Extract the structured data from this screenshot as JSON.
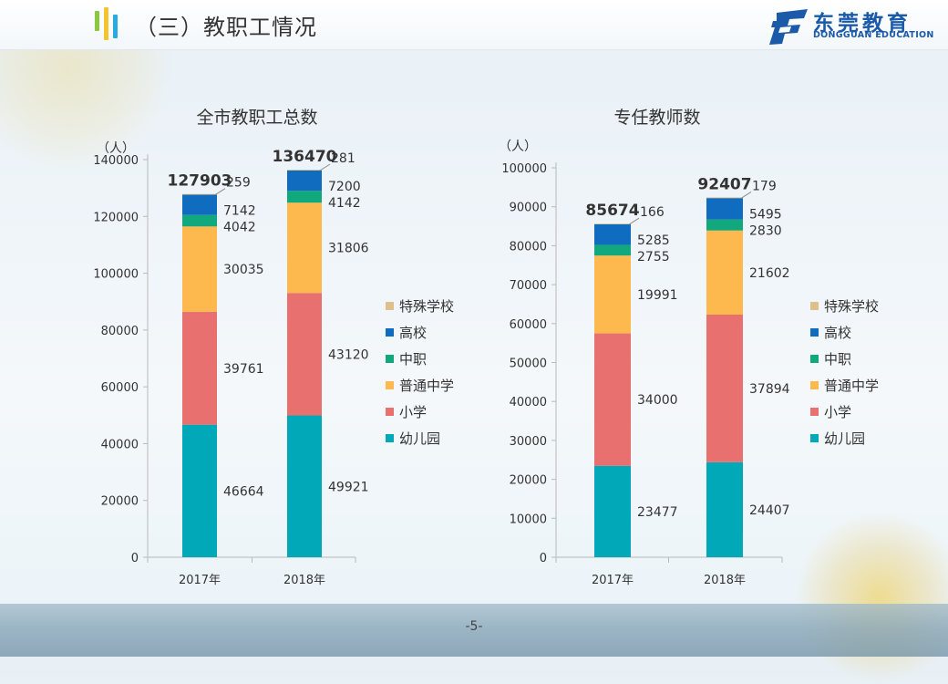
{
  "page": {
    "title": "（三）教职工情况",
    "page_number": "-5-",
    "logo": {
      "cn": "东莞教育",
      "en": "DONGGUAN EDUCATION",
      "color": "#1a5aa8"
    },
    "title_bar_colors": [
      "#8dc63f",
      "#f4c430",
      "#29abe2"
    ]
  },
  "chart_data": [
    {
      "type": "bar",
      "stacked": true,
      "title": "全市教职工总数",
      "ylabel": "（人）",
      "categories": [
        "2017年",
        "2018年"
      ],
      "ylim": [
        0,
        140000
      ],
      "yticks": [
        0,
        20000,
        40000,
        60000,
        80000,
        100000,
        120000,
        140000
      ],
      "totals": [
        127903,
        136470
      ],
      "series": [
        {
          "name": "幼儿园",
          "color": "#00a8b8",
          "values": [
            46664,
            49921
          ]
        },
        {
          "name": "小学",
          "color": "#e8706f",
          "values": [
            39761,
            43120
          ]
        },
        {
          "name": "普通中学",
          "color": "#fdb84e",
          "values": [
            30035,
            31806
          ]
        },
        {
          "name": "中职",
          "color": "#10a87c",
          "values": [
            4042,
            4142
          ]
        },
        {
          "name": "高校",
          "color": "#0f6cbf",
          "values": [
            7142,
            7200
          ]
        },
        {
          "name": "特殊学校",
          "color": "#dfc08c",
          "values": [
            259,
            281
          ]
        }
      ],
      "legend": "right"
    },
    {
      "type": "bar",
      "stacked": true,
      "title": "专任教师数",
      "ylabel": "（人）",
      "categories": [
        "2017年",
        "2018年"
      ],
      "ylim": [
        0,
        100000
      ],
      "yticks": [
        0,
        10000,
        20000,
        30000,
        40000,
        50000,
        60000,
        70000,
        80000,
        90000,
        100000
      ],
      "totals": [
        85674,
        92407
      ],
      "series": [
        {
          "name": "幼儿园",
          "color": "#00a8b8",
          "values": [
            23477,
            24407
          ]
        },
        {
          "name": "小学",
          "color": "#e8706f",
          "values": [
            34000,
            37894
          ]
        },
        {
          "name": "普通中学",
          "color": "#fdb84e",
          "values": [
            19991,
            21602
          ]
        },
        {
          "name": "中职",
          "color": "#10a87c",
          "values": [
            2755,
            2830
          ]
        },
        {
          "name": "高校",
          "color": "#0f6cbf",
          "values": [
            5285,
            5495
          ]
        },
        {
          "name": "特殊学校",
          "color": "#dfc08c",
          "values": [
            166,
            179
          ]
        }
      ],
      "legend": "right"
    }
  ]
}
